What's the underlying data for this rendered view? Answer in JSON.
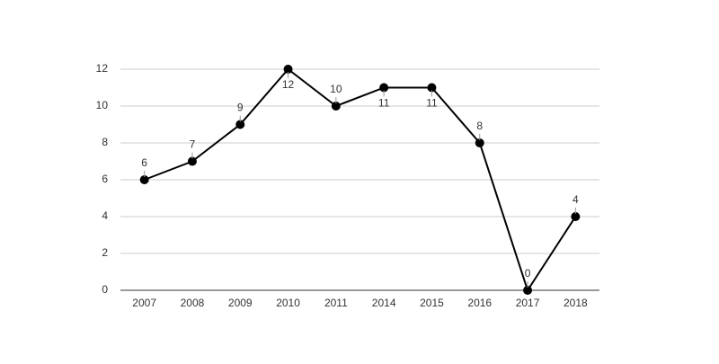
{
  "chart_data": {
    "type": "line",
    "categories": [
      "2007",
      "2008",
      "2009",
      "2010",
      "2011",
      "2014",
      "2015",
      "2016",
      "2017",
      "2018"
    ],
    "values": [
      6,
      7,
      9,
      12,
      10,
      11,
      11,
      8,
      0,
      4
    ],
    "color": "#000000",
    "ylim": [
      0,
      12
    ],
    "yticks": [
      0,
      2,
      4,
      6,
      8,
      10,
      12
    ],
    "grid": true,
    "data_labels": true
  }
}
